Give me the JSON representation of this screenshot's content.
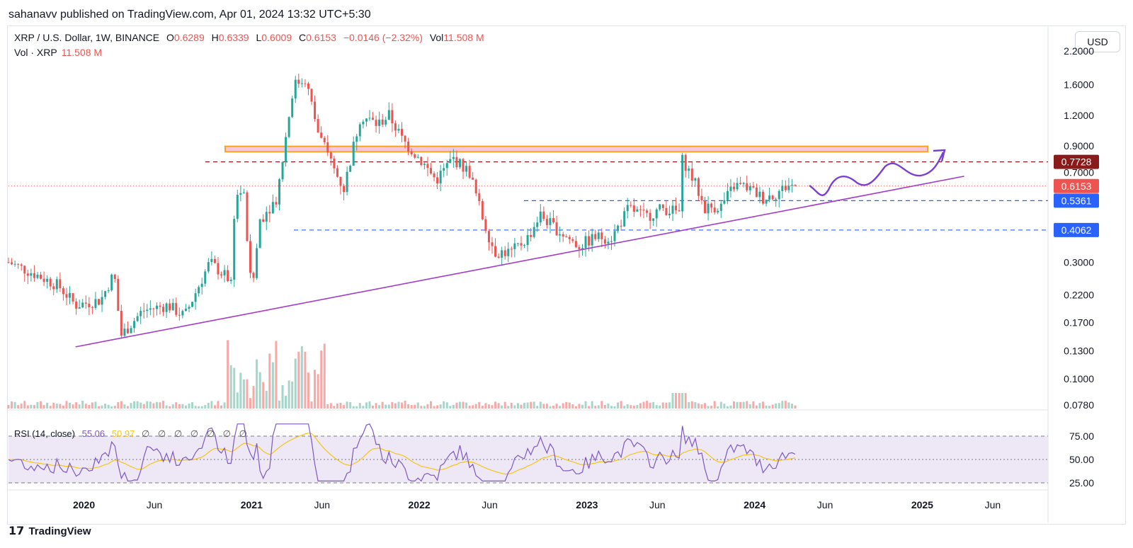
{
  "header": {
    "published": "sahanavv published on TradingView.com, Apr 01, 2024 13:32 UTC+5:30"
  },
  "toolbar": {
    "currency": "USD"
  },
  "legend": {
    "symbol": "XRP / U.S. Dollar, 1W, BINANCE",
    "o_label": "O",
    "o_value": "0.6289",
    "h_label": "H",
    "h_value": "0.6339",
    "l_label": "L",
    "l_value": "0.6009",
    "c_label": "C",
    "c_value": "0.6153",
    "change": "−0.0146 (−2.32%)",
    "vol_label": "Vol",
    "vol_value": "11.508 M",
    "vol_row_label": "Vol · XRP",
    "vol_row_value": "11.508 M"
  },
  "rsi_legend": {
    "label": "RSI (14, close)",
    "value1": "55.06",
    "value2": "50.97",
    "na": "∅ ∅ ∅ ∅ ∅ ∅ ∅"
  },
  "footer": {
    "brand": "TradingView",
    "logo": "tradingview-logo-icon"
  },
  "colors": {
    "up": "#26a69a",
    "down": "#ef5350",
    "trendline": "#a23cc9",
    "zone_fill": "#f7c6d9",
    "zone_border": "#f6a623",
    "resistance_dash": "#8b1a1a",
    "support_dash": "#2962ff",
    "rsi_line": "#7e57c2",
    "rsi_ma": "#f5c518",
    "rsi_band": "#ede7f6"
  },
  "chart_data": {
    "type": "candlestick",
    "price_axis": {
      "scale": "log",
      "ticks": [
        "2.2000",
        "1.6000",
        "1.2000",
        "0.9000",
        "0.7000",
        "0.3000",
        "0.2200",
        "0.1700",
        "0.1300",
        "0.1000",
        "0.0780"
      ],
      "tick_values": [
        2.2,
        1.6,
        1.2,
        0.9,
        0.7,
        0.3,
        0.22,
        0.17,
        0.13,
        0.1,
        0.078
      ]
    },
    "price_labels": [
      {
        "value": 0.7728,
        "text": "0.7728",
        "color": "#8b1a1a"
      },
      {
        "value": 0.6153,
        "text": "0.6153",
        "color": "#ef5350"
      },
      {
        "value": 0.5361,
        "text": "0.5361",
        "color": "#2962ff"
      },
      {
        "value": 0.4062,
        "text": "0.4062",
        "color": "#2962ff"
      }
    ],
    "time_axis": {
      "labels": [
        "2020",
        "Jun",
        "2021",
        "Jun",
        "2022",
        "Jun",
        "2023",
        "Jun",
        "2024",
        "Jun",
        "2025",
        "Jun"
      ],
      "label_dates": [
        2020.0,
        2020.42,
        2021.0,
        2021.42,
        2022.0,
        2022.42,
        2023.0,
        2023.42,
        2024.0,
        2024.42,
        2025.0,
        2025.42
      ],
      "range": [
        2019.55,
        2025.75
      ]
    },
    "series_path": [
      [
        2019.55,
        0.3
      ],
      [
        2019.7,
        0.27
      ],
      [
        2019.85,
        0.24
      ],
      [
        2019.95,
        0.2
      ],
      [
        2020.1,
        0.21
      ],
      [
        2020.18,
        0.27
      ],
      [
        2020.22,
        0.15
      ],
      [
        2020.35,
        0.19
      ],
      [
        2020.5,
        0.2
      ],
      [
        2020.6,
        0.18
      ],
      [
        2020.75,
        0.3
      ],
      [
        2020.88,
        0.25
      ],
      [
        2020.9,
        0.55
      ],
      [
        2020.95,
        0.6
      ],
      [
        2021.0,
        0.22
      ],
      [
        2021.05,
        0.45
      ],
      [
        2021.15,
        0.55
      ],
      [
        2021.25,
        1.6
      ],
      [
        2021.32,
        1.7
      ],
      [
        2021.4,
        1.0
      ],
      [
        2021.5,
        0.7
      ],
      [
        2021.55,
        0.6
      ],
      [
        2021.65,
        1.2
      ],
      [
        2021.75,
        1.1
      ],
      [
        2021.82,
        1.2
      ],
      [
        2021.9,
        0.95
      ],
      [
        2022.0,
        0.8
      ],
      [
        2022.1,
        0.65
      ],
      [
        2022.2,
        0.8
      ],
      [
        2022.3,
        0.7
      ],
      [
        2022.38,
        0.45
      ],
      [
        2022.45,
        0.33
      ],
      [
        2022.55,
        0.33
      ],
      [
        2022.65,
        0.38
      ],
      [
        2022.72,
        0.47
      ],
      [
        2022.8,
        0.42
      ],
      [
        2022.88,
        0.38
      ],
      [
        2022.95,
        0.35
      ],
      [
        2023.05,
        0.38
      ],
      [
        2023.15,
        0.38
      ],
      [
        2023.25,
        0.5
      ],
      [
        2023.35,
        0.46
      ],
      [
        2023.45,
        0.5
      ],
      [
        2023.55,
        0.48
      ],
      [
        2023.57,
        0.8
      ],
      [
        2023.65,
        0.62
      ],
      [
        2023.7,
        0.5
      ],
      [
        2023.8,
        0.51
      ],
      [
        2023.88,
        0.62
      ],
      [
        2023.95,
        0.61
      ],
      [
        2024.05,
        0.55
      ],
      [
        2024.12,
        0.57
      ],
      [
        2024.2,
        0.62
      ],
      [
        2024.25,
        0.6153
      ]
    ],
    "volume_axis_label": "Vol · XRP",
    "resistance_zone": {
      "from": 0.85,
      "to": 0.895
    },
    "resistance_line": 0.7728,
    "support_lines": [
      0.5361,
      0.4062
    ],
    "trendline": {
      "start": [
        2019.95,
        0.135
      ],
      "end": [
        2025.25,
        0.675
      ]
    },
    "projection": "wave path ending with an upward arrow, drawn by author",
    "rsi": {
      "label": "RSI (14, close)",
      "levels": [
        75,
        50,
        25
      ],
      "level_labels": [
        "75.00",
        "50.00",
        "25.00"
      ],
      "last_rsi": 55.06,
      "last_ma": 50.97
    }
  }
}
